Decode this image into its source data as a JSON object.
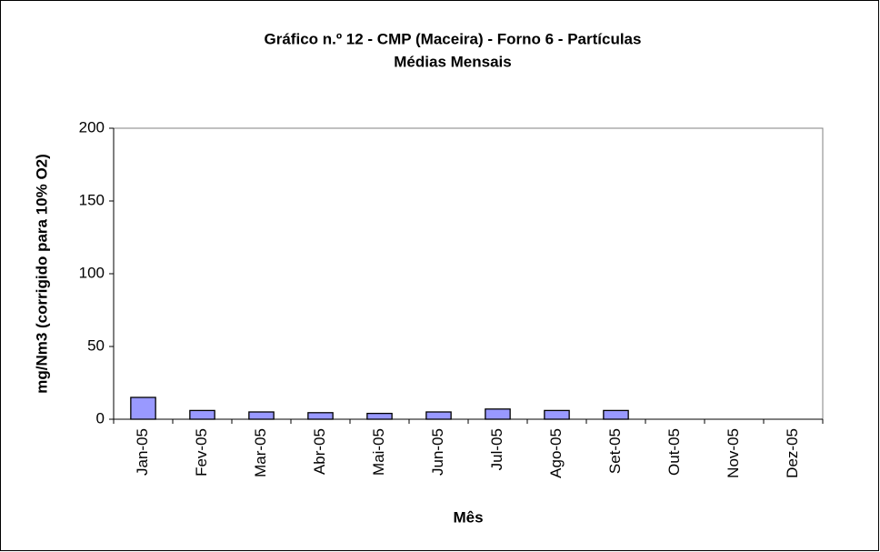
{
  "chart_data": {
    "type": "bar",
    "title": "Gráfico n.º 12  - CMP (Maceira) - Forno 6 - Partículas",
    "subtitle": "Médias Mensais",
    "x_label": "Mês",
    "y_label": "mg/Nm3 (corrigido para 10% O2)",
    "categories": [
      "Jan-05",
      "Fev-05",
      "Mar-05",
      "Abr-05",
      "Mai-05",
      "Jun-05",
      "Jul-05",
      "Ago-05",
      "Set-05",
      "Out-05",
      "Nov-05",
      "Dez-05"
    ],
    "values": [
      15,
      6,
      5,
      4.5,
      4,
      5,
      7,
      6,
      6,
      null,
      null,
      null
    ],
    "color": "#9999ff",
    "ylim": [
      0,
      200
    ],
    "yticks": [
      0,
      50,
      100,
      150,
      200
    ],
    "grid": false
  }
}
